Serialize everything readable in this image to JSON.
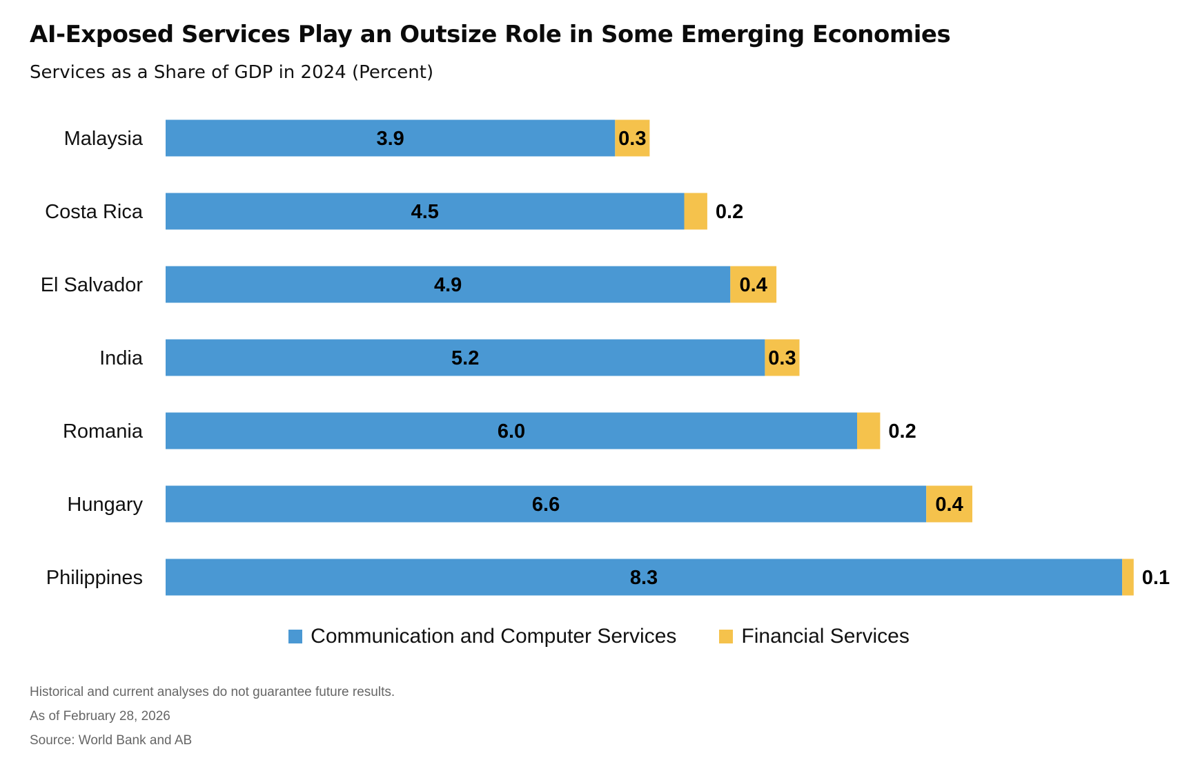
{
  "title": "AI-Exposed Services Play an Outsize Role in Some Emerging Economies",
  "subtitle": "Services as a Share of GDP in 2024 (Percent)",
  "colors": {
    "communication": "#4a98d3",
    "financial": "#f5c24c",
    "label_text": "#000000"
  },
  "chart_data": {
    "type": "bar",
    "orientation": "horizontal",
    "stacked": true,
    "categories": [
      "Malaysia",
      "Costa Rica",
      "El Salvador",
      "India",
      "Romania",
      "Hungary",
      "Philippines"
    ],
    "series": [
      {
        "name": "Communication and Computer Services",
        "values": [
          3.9,
          4.5,
          4.9,
          5.2,
          6.0,
          6.6,
          8.3
        ],
        "labels": [
          "3.9",
          "4.5",
          "4.9",
          "5.2",
          "6.0",
          "6.6",
          "8.3"
        ]
      },
      {
        "name": "Financial Services",
        "values": [
          0.3,
          0.2,
          0.4,
          0.3,
          0.2,
          0.4,
          0.1
        ],
        "labels": [
          "0.3",
          "0.2",
          "0.4",
          "0.3",
          "0.2",
          "0.4",
          "0.1"
        ]
      }
    ],
    "xlim": [
      0,
      8.4
    ],
    "grid": false,
    "legend_position": "bottom-center"
  },
  "legend": {
    "items": [
      {
        "label": "Communication and Computer Services"
      },
      {
        "label": "Financial Services"
      }
    ]
  },
  "notes": {
    "disclaimer": "Historical and current analyses do not guarantee future results.",
    "date": "As of February 28, 2026",
    "source": "Source: World Bank and AB"
  }
}
